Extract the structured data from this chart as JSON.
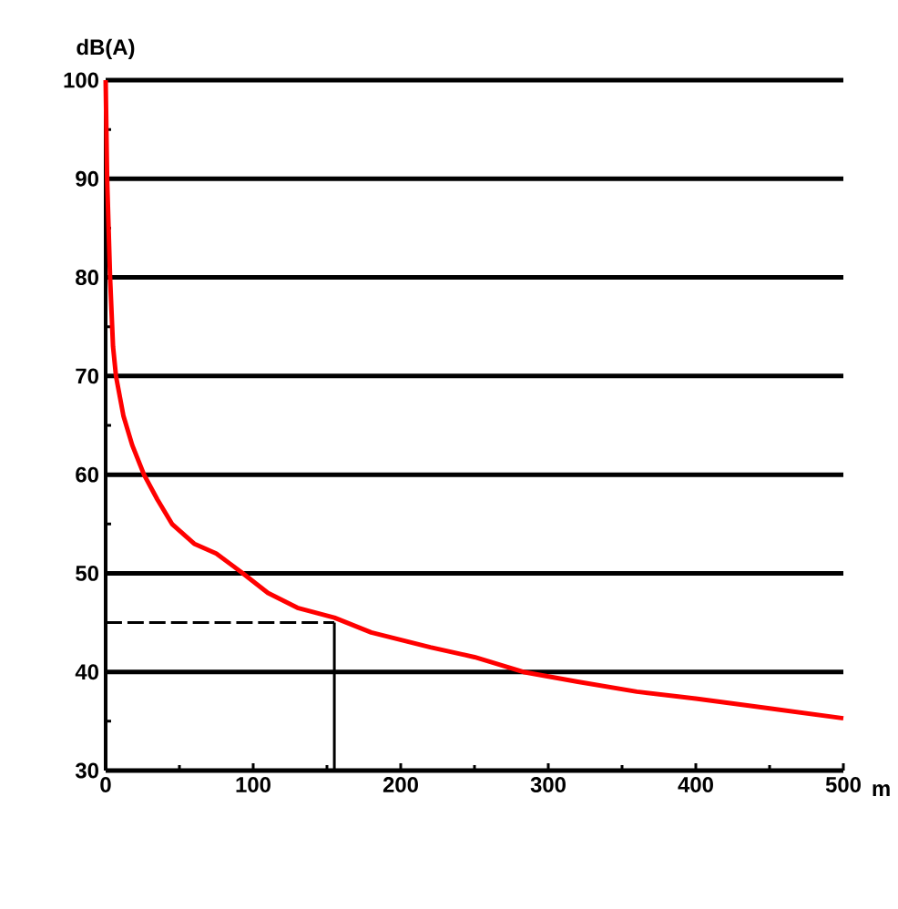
{
  "chart_data": {
    "type": "line",
    "xlabel": "m",
    "ylabel": "dB(A)",
    "xlim": [
      0,
      500
    ],
    "ylim": [
      30,
      100
    ],
    "xticks": [
      0,
      100,
      200,
      300,
      400,
      500
    ],
    "yticks": [
      30,
      40,
      50,
      60,
      70,
      80,
      90,
      100
    ],
    "grid": "y",
    "marker": "none",
    "series": [
      {
        "color": "#ff0000",
        "x": [
          0,
          1,
          3,
          5,
          7,
          12,
          18,
          26,
          35,
          45,
          60,
          75,
          93,
          110,
          130,
          155,
          180,
          220,
          250,
          283,
          320,
          360,
          400,
          450,
          500
        ],
        "values": [
          100,
          90,
          80,
          73,
          70,
          66,
          63,
          60,
          57.5,
          55,
          53,
          52,
          50,
          48,
          46.5,
          45.5,
          44,
          42.5,
          41.5,
          40,
          39,
          38,
          37.3,
          36.3,
          35.3
        ]
      },
      {
        "color": "#000000",
        "line_style": "dashed",
        "x": [
          0,
          155
        ],
        "values": [
          45,
          45
        ]
      },
      {
        "color": "#000000",
        "line_style": "solid",
        "x": [
          155,
          155
        ],
        "values": [
          30,
          45
        ]
      }
    ]
  }
}
